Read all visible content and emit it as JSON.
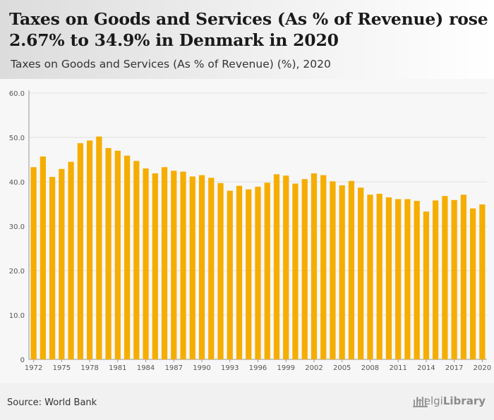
{
  "header": {
    "title": "Taxes on Goods and Services (As % of Revenue) rose 2.67% to 34.9% in Denmark in 2020",
    "subtitle": "Taxes on Goods and Services (As % of Revenue) (%), 2020"
  },
  "footer": {
    "source": "Source: World Bank",
    "brand_part1": "Helgi",
    "brand_part2": "Library"
  },
  "colors": {
    "bar": "#f5ad00",
    "grid": "#e2e2e2",
    "axis": "#555555"
  },
  "chart_data": {
    "type": "bar",
    "title": "Taxes on Goods and Services (As % of Revenue) (%), 2020",
    "xlabel": "",
    "ylabel": "",
    "ylim": [
      0,
      60
    ],
    "yticks": [
      0,
      10.0,
      20.0,
      30.0,
      40.0,
      50.0,
      60.0
    ],
    "ytick_labels": [
      "0",
      "10.0",
      "20.0",
      "30.0",
      "40.0",
      "50.0",
      "60.0"
    ],
    "xtick_labels": [
      "1972",
      "1975",
      "1978",
      "1981",
      "1984",
      "1987",
      "1990",
      "1993",
      "1996",
      "1999",
      "2002",
      "2005",
      "2008",
      "2011",
      "2014",
      "2017",
      "2020"
    ],
    "grid": true,
    "categories": [
      1972,
      1973,
      1974,
      1975,
      1976,
      1977,
      1978,
      1979,
      1980,
      1981,
      1982,
      1983,
      1984,
      1985,
      1986,
      1987,
      1988,
      1989,
      1990,
      1991,
      1992,
      1993,
      1994,
      1995,
      1996,
      1997,
      1998,
      1999,
      2000,
      2001,
      2002,
      2003,
      2004,
      2005,
      2006,
      2007,
      2008,
      2009,
      2010,
      2011,
      2012,
      2013,
      2014,
      2015,
      2016,
      2017,
      2018,
      2019,
      2020
    ],
    "values": [
      43.3,
      45.7,
      41.1,
      42.9,
      44.5,
      48.7,
      49.3,
      50.2,
      47.6,
      47.0,
      45.9,
      44.7,
      43.0,
      41.9,
      43.3,
      42.5,
      42.3,
      41.2,
      41.5,
      40.9,
      39.7,
      38.0,
      39.1,
      38.3,
      38.9,
      39.8,
      41.7,
      41.4,
      39.6,
      40.6,
      41.9,
      41.5,
      40.1,
      39.2,
      40.2,
      38.7,
      37.1,
      37.3,
      36.5,
      36.1,
      36.1,
      35.7,
      33.3,
      35.8,
      36.8,
      35.9,
      37.1,
      34.0,
      34.9
    ]
  }
}
